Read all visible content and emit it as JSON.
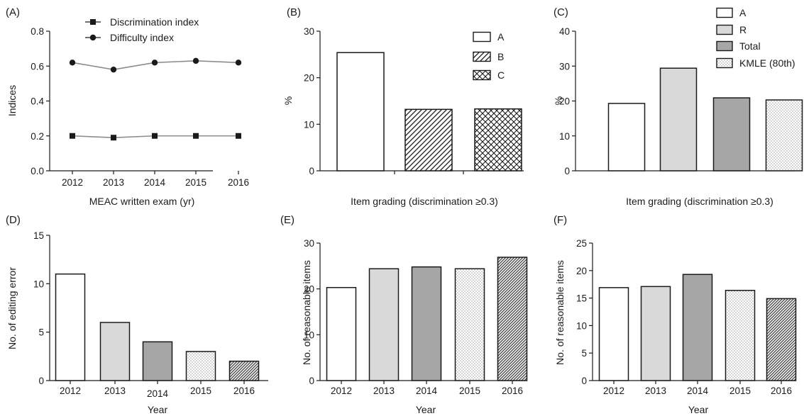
{
  "chart_data": [
    {
      "panel": "(A)",
      "type": "line",
      "x": [
        "2012",
        "2013",
        "2014",
        "2015",
        "2016"
      ],
      "series": [
        {
          "name": "Discrimination index",
          "marker": "square",
          "values": [
            0.2,
            0.19,
            0.2,
            0.2,
            0.2
          ]
        },
        {
          "name": "Difficulty index",
          "marker": "circle",
          "values": [
            0.62,
            0.58,
            0.62,
            0.63,
            0.62
          ]
        }
      ],
      "xlabel": "MEAC written exam (yr)",
      "ylabel": "Indices",
      "ylim": [
        0,
        0.8
      ],
      "yticks": [
        "0.0",
        "0.2",
        "0.4",
        "0.6",
        "0.8"
      ],
      "legend": "top-left",
      "grid": false
    },
    {
      "panel": "(B)",
      "type": "bar",
      "categories": [
        "A",
        "B",
        "C"
      ],
      "values": [
        25.4,
        13.2,
        13.3
      ],
      "patterns": [
        "white",
        "hatch",
        "crosshatch"
      ],
      "legend_entries": [
        "A",
        "B",
        "C"
      ],
      "xlabel": "Item grading (discrimination ≥0.3)",
      "ylabel": "%",
      "ylim": [
        0,
        30
      ],
      "yticks": [
        "0",
        "10",
        "20",
        "30"
      ],
      "legend": "top-right",
      "grid": false
    },
    {
      "panel": "(C)",
      "type": "bar",
      "categories": [
        "A",
        "R",
        "Total",
        "KMLE (80th)"
      ],
      "values": [
        19.3,
        29.4,
        20.9,
        20.3
      ],
      "patterns": [
        "white",
        "lightgray",
        "gray",
        "dots"
      ],
      "legend_entries": [
        "A",
        "R",
        "Total",
        "KMLE (80th)"
      ],
      "xlabel": "Item grading (discrimination ≥0.3)",
      "ylabel": "%",
      "ylim": [
        0,
        40
      ],
      "yticks": [
        "0",
        "10",
        "20",
        "30",
        "40"
      ],
      "legend": "top-right",
      "grid": false
    },
    {
      "panel": "(D)",
      "type": "bar",
      "categories": [
        "2012",
        "2013",
        "2014",
        "2015",
        "2016"
      ],
      "values": [
        11,
        6,
        4,
        3,
        2
      ],
      "patterns": [
        "white",
        "lightgray",
        "gray",
        "dots",
        "hatch"
      ],
      "xlabel": "Year",
      "ylabel": "No. of editing error",
      "ylim": [
        0,
        15
      ],
      "yticks": [
        "0",
        "5",
        "10",
        "15"
      ],
      "grid": false
    },
    {
      "panel": "(E)",
      "type": "bar",
      "categories": [
        "2012",
        "2013",
        "2014",
        "2015",
        "2016"
      ],
      "values": [
        20.3,
        24.4,
        24.8,
        24.4,
        26.9
      ],
      "patterns": [
        "white",
        "lightgray",
        "gray",
        "dots",
        "hatch"
      ],
      "xlabel": "Year",
      "ylabel": "No. of reasonable items",
      "ylim": [
        0,
        30
      ],
      "yticks": [
        "0",
        "10",
        "20",
        "30"
      ],
      "grid": false
    },
    {
      "panel": "(F)",
      "type": "bar",
      "categories": [
        "2012",
        "2013",
        "2014",
        "2015",
        "2016"
      ],
      "values": [
        16.9,
        17.1,
        19.3,
        16.4,
        14.9
      ],
      "patterns": [
        "white",
        "lightgray",
        "gray",
        "dots",
        "hatch"
      ],
      "xlabel": "Year",
      "ylabel": "No. of reasonable items",
      "ylim": [
        0,
        25
      ],
      "yticks": [
        "0",
        "5",
        "10",
        "15",
        "20",
        "25"
      ],
      "grid": false
    }
  ],
  "colors": {
    "ink": "#1a1a1a",
    "white": "#ffffff",
    "lightgray": "#d9d9d9",
    "gray": "#a6a6a6",
    "line": "#8c8c8c"
  }
}
